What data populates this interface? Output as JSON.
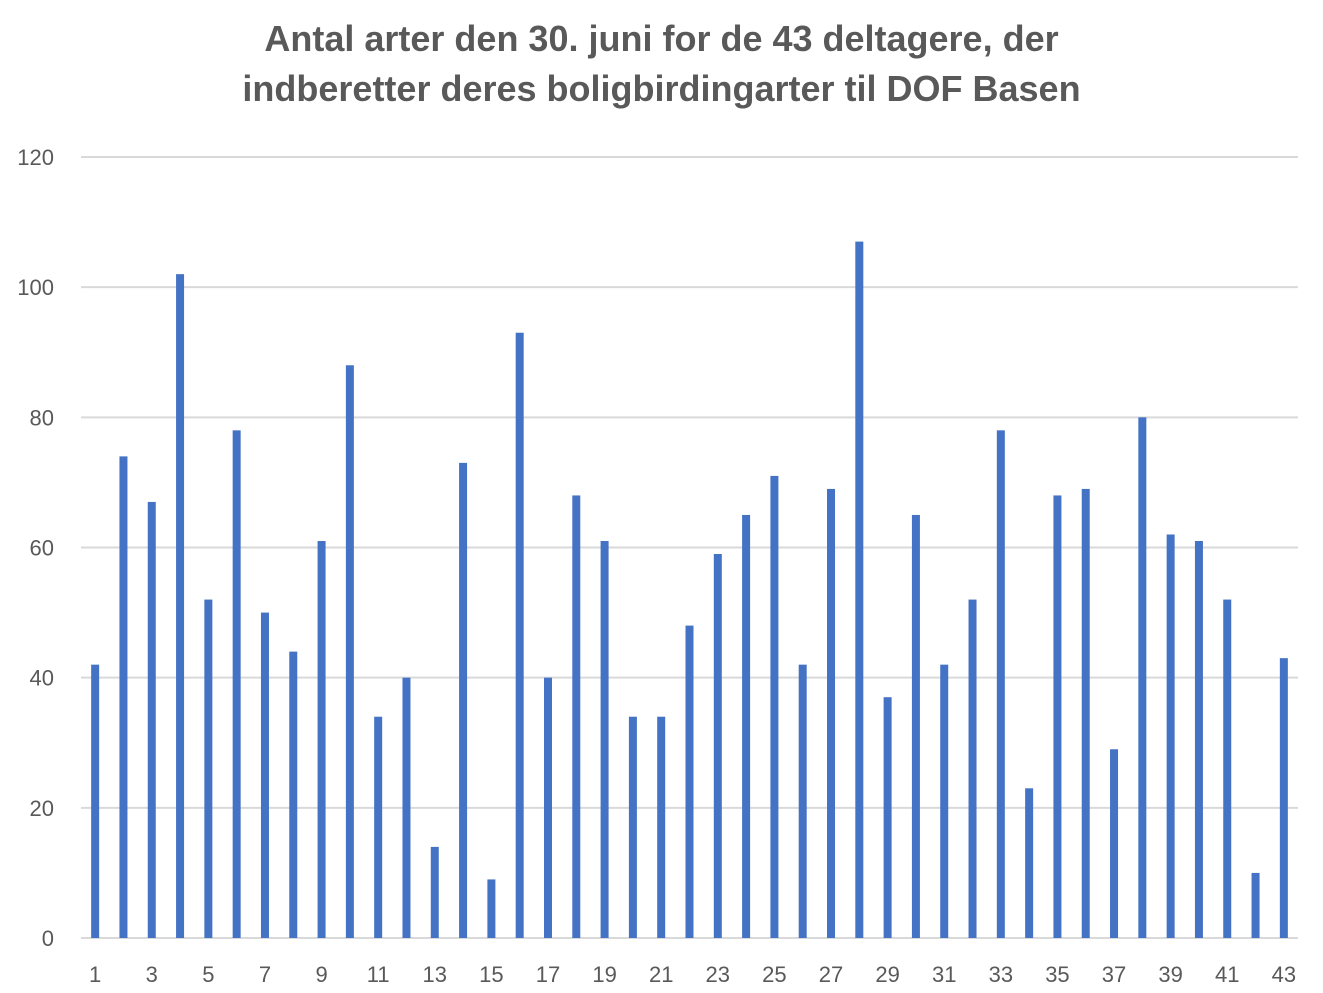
{
  "chart_data": {
    "type": "bar",
    "title_lines": [
      "Antal arter den 30. juni for de 43 deltagere, der",
      "indberetter deres boligbirdingarter til DOF Basen"
    ],
    "xlabel": "",
    "ylabel": "",
    "categories": [
      1,
      2,
      3,
      4,
      5,
      6,
      7,
      8,
      9,
      10,
      11,
      12,
      13,
      14,
      15,
      16,
      17,
      18,
      19,
      20,
      21,
      22,
      23,
      24,
      25,
      26,
      27,
      28,
      29,
      30,
      31,
      32,
      33,
      34,
      35,
      36,
      37,
      38,
      39,
      40,
      41,
      42,
      43
    ],
    "values": [
      42,
      74,
      67,
      102,
      52,
      78,
      50,
      44,
      61,
      88,
      34,
      40,
      14,
      73,
      9,
      93,
      40,
      68,
      61,
      34,
      34,
      48,
      59,
      65,
      71,
      42,
      69,
      107,
      37,
      65,
      42,
      52,
      78,
      23,
      68,
      69,
      29,
      80,
      62,
      61,
      52,
      10,
      43
    ],
    "x_tick_labels": [
      "1",
      "3",
      "5",
      "7",
      "9",
      "11",
      "13",
      "15",
      "17",
      "19",
      "21",
      "23",
      "25",
      "27",
      "29",
      "31",
      "33",
      "35",
      "37",
      "39",
      "41",
      "43"
    ],
    "y_ticks": [
      "0",
      "20",
      "40",
      "60",
      "80",
      "100",
      "120"
    ],
    "ylim": [
      0,
      120
    ],
    "grid": "horizontal",
    "legend": "none",
    "bar_color": "#4472C4",
    "grid_color": "#D9D9D9",
    "text_color": "#595959"
  }
}
